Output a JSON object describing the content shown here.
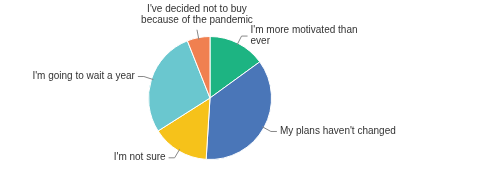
{
  "chart_data": {
    "type": "pie",
    "categories": [
      "I'm more motivated than ever",
      "My plans haven't changed",
      "I'm not sure",
      "I'm going to wait a year",
      "I've decided not to buy because of the pandemic"
    ],
    "values": [
      15,
      36,
      15,
      28,
      6
    ],
    "colors": [
      "#1db482",
      "#4a76b8",
      "#f6c21a",
      "#6ac7cf",
      "#f08050"
    ]
  }
}
